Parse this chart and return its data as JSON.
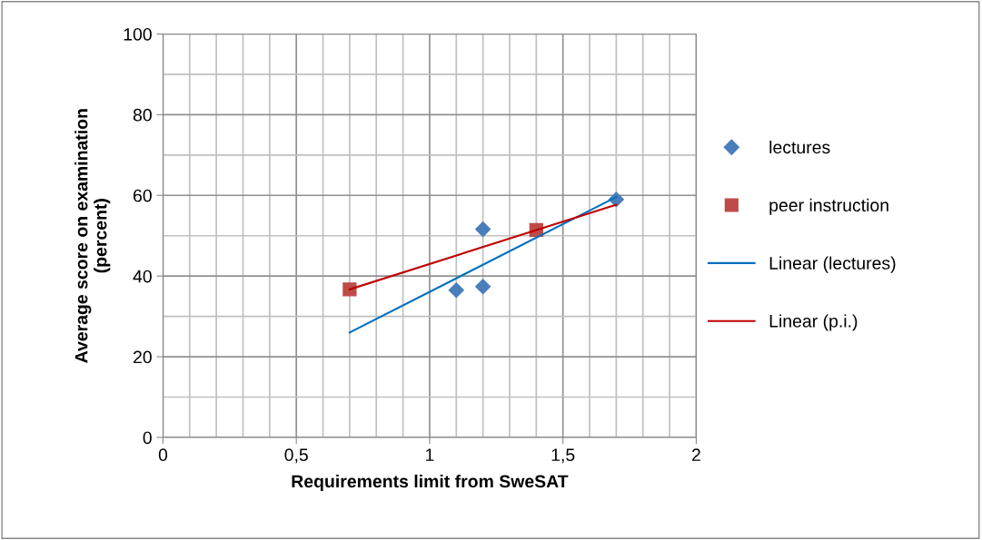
{
  "chart_data": {
    "type": "scatter",
    "xlabel": "Requirements limit from SweSAT",
    "ylabel": "Average score on examination\n(percent)",
    "series": [
      {
        "name": "lectures",
        "marker": "diamond",
        "color": "#4a7ebb",
        "x": [
          1.1,
          1.2,
          1.2,
          1.7
        ],
        "values": [
          36.5,
          37.4,
          51.6,
          59.0
        ]
      },
      {
        "name": "peer instruction",
        "marker": "square",
        "color": "#be4b48",
        "x": [
          0.7,
          1.4
        ],
        "values": [
          36.7,
          51.4
        ]
      },
      {
        "name": "Linear (lectures)",
        "type": "line",
        "marker": "none",
        "line_style": "solid",
        "color": "#0070c0",
        "x": [
          0.7,
          1.7
        ],
        "values": [
          26.0,
          59.6
        ]
      },
      {
        "name": "Linear (p.i.)",
        "type": "line",
        "marker": "none",
        "line_style": "solid",
        "color": "#c00000",
        "x": [
          0.7,
          1.7
        ],
        "values": [
          36.7,
          57.7
        ]
      }
    ],
    "xlim": [
      0,
      2
    ],
    "xticks": [
      0,
      {
        "value": 0.5,
        "label": "0,5"
      },
      1,
      {
        "value": 1.5,
        "label": "1,5"
      },
      2
    ],
    "ylim": [
      0,
      100
    ],
    "yticks": [
      0,
      20,
      40,
      60,
      80,
      100
    ],
    "grid": true,
    "legend": "right"
  }
}
